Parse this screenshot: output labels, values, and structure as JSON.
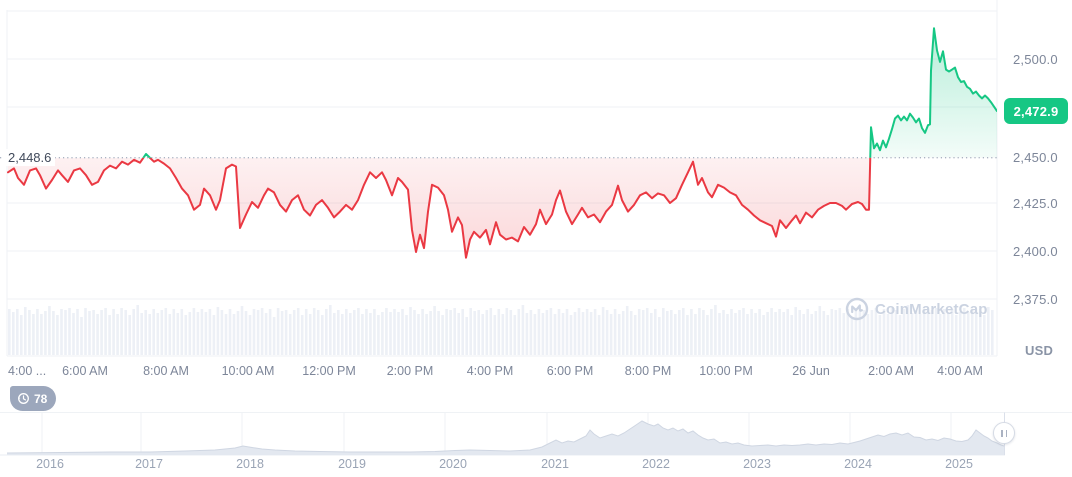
{
  "colors": {
    "up": "#16c784",
    "down": "#ea3943",
    "grid": "#eff2f5",
    "dotted_line": "#aab2c2",
    "axis_text": "#7d8699",
    "chip_text": "#414a5b",
    "badge_text": "#ffffff",
    "volume_bar": "#edf0f6",
    "watermark": "#cbd3e1",
    "nav_fill": "#e3e8f0",
    "nav_stroke": "#cfd6e2",
    "nav_grid": "#eff2f5",
    "nav_baseline": "#e8ecf3",
    "nav_range_line": "#dbe0ea",
    "year_text": "#9aa4b5",
    "views_badge_bg": "#9ca7bc",
    "handle_border": "#d6dbe5",
    "handle_icon": "#aab2c2"
  },
  "left_price_label": "2,448.6",
  "current_price_badge": "2,472.9",
  "y_axis": {
    "ticks": [
      "2,500.0",
      "2,450.0",
      "2,425.0",
      "2,400.0",
      "2,375.0"
    ],
    "unit_label": "USD"
  },
  "x_axis": {
    "ticks": [
      "4:00 ...",
      "6:00 AM",
      "8:00 AM",
      "10:00 AM",
      "12:00 PM",
      "2:00 PM",
      "4:00 PM",
      "6:00 PM",
      "8:00 PM",
      "10:00 PM",
      "26 Jun",
      "2:00 AM",
      "4:00 AM"
    ]
  },
  "views_badge": {
    "count": "78"
  },
  "watermark_text": "CoinMarketCap",
  "navigator": {
    "years": [
      "2016",
      "2017",
      "2018",
      "2019",
      "2020",
      "2021",
      "2022",
      "2023",
      "2024",
      "2025"
    ]
  },
  "chart_data": {
    "type": "line",
    "title": "Intraday price line chart with baseline, USD",
    "baseline_price": 2448.6,
    "last_price": 2472.9,
    "ylim": [
      2345,
      2531
    ],
    "gridline_prices": [
      2525,
      2500,
      2475,
      2425,
      2400,
      2375
    ],
    "points": [
      [
        8,
        2441
      ],
      [
        14,
        2443
      ],
      [
        18,
        2438
      ],
      [
        24,
        2434.5
      ],
      [
        30,
        2442
      ],
      [
        36,
        2443
      ],
      [
        40,
        2439.5
      ],
      [
        46,
        2432.5
      ],
      [
        52,
        2437
      ],
      [
        58,
        2442
      ],
      [
        62,
        2439.5
      ],
      [
        68,
        2436
      ],
      [
        74,
        2442
      ],
      [
        80,
        2443
      ],
      [
        86,
        2439.5
      ],
      [
        92,
        2434.5
      ],
      [
        98,
        2436
      ],
      [
        104,
        2442
      ],
      [
        110,
        2444.5
      ],
      [
        116,
        2443
      ],
      [
        122,
        2446.5
      ],
      [
        128,
        2445
      ],
      [
        134,
        2447.5
      ],
      [
        140,
        2446
      ],
      [
        146,
        2450.5
      ],
      [
        150,
        2448.5
      ],
      [
        154,
        2446.5
      ],
      [
        158,
        2447.5
      ],
      [
        164,
        2445.5
      ],
      [
        170,
        2443
      ],
      [
        176,
        2438
      ],
      [
        182,
        2432.5
      ],
      [
        188,
        2429
      ],
      [
        194,
        2421.5
      ],
      [
        200,
        2424
      ],
      [
        204,
        2432.5
      ],
      [
        210,
        2429
      ],
      [
        216,
        2421.5
      ],
      [
        220,
        2426.5
      ],
      [
        226,
        2443
      ],
      [
        232,
        2445
      ],
      [
        236,
        2444
      ],
      [
        240,
        2412
      ],
      [
        246,
        2419
      ],
      [
        252,
        2425.5
      ],
      [
        258,
        2422.5
      ],
      [
        264,
        2429
      ],
      [
        268,
        2432.5
      ],
      [
        274,
        2430.5
      ],
      [
        280,
        2424
      ],
      [
        286,
        2420.5
      ],
      [
        292,
        2426.5
      ],
      [
        298,
        2429
      ],
      [
        304,
        2421.5
      ],
      [
        310,
        2418.5
      ],
      [
        316,
        2424
      ],
      [
        322,
        2426.5
      ],
      [
        328,
        2422.5
      ],
      [
        334,
        2417.5
      ],
      [
        340,
        2420.5
      ],
      [
        346,
        2424
      ],
      [
        352,
        2421.5
      ],
      [
        358,
        2426.5
      ],
      [
        364,
        2434.5
      ],
      [
        370,
        2441
      ],
      [
        376,
        2438
      ],
      [
        382,
        2441
      ],
      [
        386,
        2437
      ],
      [
        392,
        2429
      ],
      [
        398,
        2438
      ],
      [
        402,
        2436
      ],
      [
        408,
        2432
      ],
      [
        412,
        2411
      ],
      [
        416,
        2399.5
      ],
      [
        420,
        2408.5
      ],
      [
        424,
        2401.5
      ],
      [
        428,
        2420.5
      ],
      [
        432,
        2434.5
      ],
      [
        438,
        2433
      ],
      [
        444,
        2429
      ],
      [
        448,
        2421.5
      ],
      [
        452,
        2410
      ],
      [
        458,
        2417.5
      ],
      [
        462,
        2413.5
      ],
      [
        466,
        2396.5
      ],
      [
        470,
        2406
      ],
      [
        474,
        2410
      ],
      [
        480,
        2407
      ],
      [
        486,
        2411
      ],
      [
        490,
        2403.5
      ],
      [
        496,
        2415
      ],
      [
        500,
        2408.5
      ],
      [
        506,
        2406
      ],
      [
        512,
        2407
      ],
      [
        518,
        2405
      ],
      [
        524,
        2412.5
      ],
      [
        530,
        2408.5
      ],
      [
        536,
        2414
      ],
      [
        540,
        2421.5
      ],
      [
        546,
        2414
      ],
      [
        552,
        2419
      ],
      [
        556,
        2426.5
      ],
      [
        560,
        2431.5
      ],
      [
        566,
        2420.5
      ],
      [
        572,
        2414
      ],
      [
        578,
        2419
      ],
      [
        582,
        2422.5
      ],
      [
        588,
        2417.5
      ],
      [
        594,
        2419
      ],
      [
        600,
        2415
      ],
      [
        606,
        2420.5
      ],
      [
        612,
        2424
      ],
      [
        618,
        2434
      ],
      [
        622,
        2426.5
      ],
      [
        628,
        2420.5
      ],
      [
        634,
        2424
      ],
      [
        640,
        2429
      ],
      [
        646,
        2430.5
      ],
      [
        652,
        2427.5
      ],
      [
        658,
        2430
      ],
      [
        664,
        2429
      ],
      [
        670,
        2425
      ],
      [
        676,
        2427.5
      ],
      [
        682,
        2434.5
      ],
      [
        688,
        2441
      ],
      [
        693,
        2446.5
      ],
      [
        698,
        2434.5
      ],
      [
        702,
        2438
      ],
      [
        708,
        2430.5
      ],
      [
        712,
        2428
      ],
      [
        718,
        2434.5
      ],
      [
        724,
        2433
      ],
      [
        730,
        2430.5
      ],
      [
        736,
        2429
      ],
      [
        742,
        2424
      ],
      [
        748,
        2421.5
      ],
      [
        754,
        2418.5
      ],
      [
        760,
        2416
      ],
      [
        766,
        2414.5
      ],
      [
        772,
        2413
      ],
      [
        776,
        2407.5
      ],
      [
        780,
        2416
      ],
      [
        786,
        2412
      ],
      [
        792,
        2416
      ],
      [
        796,
        2418.5
      ],
      [
        800,
        2414.5
      ],
      [
        806,
        2420
      ],
      [
        812,
        2417.5
      ],
      [
        818,
        2421.5
      ],
      [
        824,
        2423.5
      ],
      [
        830,
        2425
      ],
      [
        836,
        2425
      ],
      [
        842,
        2423.5
      ],
      [
        846,
        2421.5
      ],
      [
        852,
        2424.5
      ],
      [
        858,
        2425.5
      ],
      [
        862,
        2424.5
      ],
      [
        866,
        2421.5
      ],
      [
        869,
        2421.5
      ],
      [
        871,
        2464.5
      ],
      [
        874,
        2453.5
      ],
      [
        877,
        2456
      ],
      [
        880,
        2452.5
      ],
      [
        883,
        2457.5
      ],
      [
        886,
        2454
      ],
      [
        889,
        2458.5
      ],
      [
        892,
        2463.5
      ],
      [
        895,
        2469
      ],
      [
        898,
        2470.5
      ],
      [
        901,
        2468
      ],
      [
        904,
        2470
      ],
      [
        907,
        2468
      ],
      [
        910,
        2471.5
      ],
      [
        913,
        2469.5
      ],
      [
        916,
        2467
      ],
      [
        919,
        2469
      ],
      [
        922,
        2464
      ],
      [
        925,
        2461.5
      ],
      [
        928,
        2465.5
      ],
      [
        930,
        2466
      ],
      [
        931,
        2494
      ],
      [
        934,
        2516
      ],
      [
        937,
        2504.5
      ],
      [
        940,
        2498.5
      ],
      [
        943,
        2504
      ],
      [
        946,
        2494.5
      ],
      [
        949,
        2493.5
      ],
      [
        952,
        2494.5
      ],
      [
        955,
        2495.5
      ],
      [
        958,
        2490.5
      ],
      [
        961,
        2488
      ],
      [
        964,
        2488.5
      ],
      [
        967,
        2485.5
      ],
      [
        970,
        2484.5
      ],
      [
        973,
        2482
      ],
      [
        976,
        2483
      ],
      [
        979,
        2481
      ],
      [
        982,
        2479.5
      ],
      [
        985,
        2481
      ],
      [
        988,
        2479.5
      ],
      [
        991,
        2477.5
      ],
      [
        997,
        2472.9
      ]
    ],
    "volume_pattern": [
      46,
      42,
      44,
      40,
      47,
      43,
      41,
      45,
      39,
      44,
      48,
      42,
      40,
      45,
      43,
      47,
      41,
      44,
      38,
      46,
      42,
      45,
      40,
      43,
      47,
      39,
      44,
      41,
      46,
      43,
      40,
      45,
      48,
      42,
      44,
      39,
      46,
      41,
      43,
      47,
      40,
      44,
      42,
      45,
      38,
      43,
      46,
      41
    ],
    "nav_area": [
      [
        7,
        2
      ],
      [
        60,
        2.5
      ],
      [
        110,
        3
      ],
      [
        150,
        3
      ],
      [
        185,
        4
      ],
      [
        215,
        5
      ],
      [
        235,
        7
      ],
      [
        243,
        9
      ],
      [
        252,
        7.5
      ],
      [
        262,
        6
      ],
      [
        275,
        5
      ],
      [
        295,
        4
      ],
      [
        320,
        3.5
      ],
      [
        350,
        3
      ],
      [
        385,
        3
      ],
      [
        410,
        3
      ],
      [
        435,
        3.5
      ],
      [
        455,
        4.5
      ],
      [
        470,
        5
      ],
      [
        490,
        4.5
      ],
      [
        510,
        4
      ],
      [
        530,
        5
      ],
      [
        542,
        8
      ],
      [
        550,
        12
      ],
      [
        556,
        15
      ],
      [
        562,
        12
      ],
      [
        568,
        14
      ],
      [
        574,
        13
      ],
      [
        580,
        16
      ],
      [
        586,
        19
      ],
      [
        590,
        25
      ],
      [
        594,
        21
      ],
      [
        600,
        17
      ],
      [
        606,
        19
      ],
      [
        612,
        21
      ],
      [
        618,
        19
      ],
      [
        624,
        22
      ],
      [
        630,
        26
      ],
      [
        636,
        30
      ],
      [
        642,
        34
      ],
      [
        648,
        31
      ],
      [
        654,
        29
      ],
      [
        658,
        31
      ],
      [
        663,
        27
      ],
      [
        668,
        25
      ],
      [
        673,
        27
      ],
      [
        678,
        24
      ],
      [
        683,
        26
      ],
      [
        688,
        22
      ],
      [
        693,
        24
      ],
      [
        698,
        20
      ],
      [
        703,
        17
      ],
      [
        708,
        15
      ],
      [
        714,
        16
      ],
      [
        720,
        12
      ],
      [
        726,
        13
      ],
      [
        732,
        11
      ],
      [
        738,
        12
      ],
      [
        744,
        10
      ],
      [
        752,
        9
      ],
      [
        760,
        9.5
      ],
      [
        768,
        10
      ],
      [
        776,
        9
      ],
      [
        784,
        10
      ],
      [
        792,
        9.5
      ],
      [
        800,
        10
      ],
      [
        808,
        11
      ],
      [
        816,
        10
      ],
      [
        824,
        11
      ],
      [
        832,
        10.5
      ],
      [
        840,
        12
      ],
      [
        848,
        11
      ],
      [
        854,
        12.5
      ],
      [
        860,
        14
      ],
      [
        866,
        16
      ],
      [
        872,
        18
      ],
      [
        878,
        20
      ],
      [
        884,
        18.5
      ],
      [
        890,
        21
      ],
      [
        896,
        22
      ],
      [
        902,
        20
      ],
      [
        908,
        22
      ],
      [
        914,
        18
      ],
      [
        920,
        17.5
      ],
      [
        926,
        15
      ],
      [
        932,
        16
      ],
      [
        938,
        14.5
      ],
      [
        944,
        17
      ],
      [
        950,
        16
      ],
      [
        956,
        14
      ],
      [
        962,
        13.5
      ],
      [
        968,
        15
      ],
      [
        972,
        19
      ],
      [
        976,
        25
      ],
      [
        980,
        22
      ],
      [
        984,
        19
      ],
      [
        988,
        17
      ],
      [
        992,
        14
      ],
      [
        997,
        12
      ],
      [
        1001,
        10
      ],
      [
        1004,
        9
      ]
    ]
  }
}
